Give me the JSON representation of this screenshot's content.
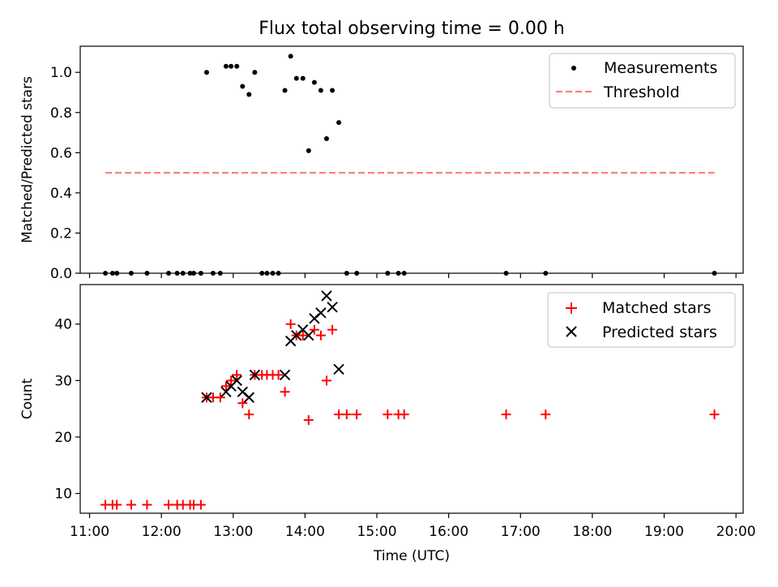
{
  "figure": {
    "title": "Flux total observing time = 0.00 h",
    "xlabel": "Time (UTC)",
    "xticks": [
      "11:00",
      "12:00",
      "13:00",
      "14:00",
      "15:00",
      "16:00",
      "17:00",
      "18:00",
      "19:00",
      "20:00"
    ]
  },
  "chart_data": [
    {
      "type": "scatter",
      "title": "Flux total observing time = 0.00 h",
      "xlabel": "",
      "ylabel": "Matched/Predicted stars",
      "x_unit": "hours UTC",
      "xlim": [
        10.87,
        20.1
      ],
      "ylim": [
        0,
        1.13
      ],
      "yticks": [
        "0.0",
        "0.2",
        "0.4",
        "0.6",
        "0.8",
        "1.0"
      ],
      "ytick_values": [
        0,
        0.2,
        0.4,
        0.6,
        0.8,
        1.0
      ],
      "grid": false,
      "legend": "top-right",
      "series": [
        {
          "name": "Measurements",
          "marker": "dot",
          "color": "#000000",
          "points": [
            [
              11.22,
              0
            ],
            [
              11.32,
              0
            ],
            [
              11.38,
              0
            ],
            [
              11.58,
              0
            ],
            [
              11.8,
              0
            ],
            [
              12.1,
              0
            ],
            [
              12.22,
              0
            ],
            [
              12.3,
              0
            ],
            [
              12.4,
              0
            ],
            [
              12.45,
              0
            ],
            [
              12.55,
              0
            ],
            [
              12.72,
              0
            ],
            [
              12.82,
              0
            ],
            [
              13.4,
              0
            ],
            [
              13.47,
              0
            ],
            [
              13.55,
              0
            ],
            [
              13.63,
              0
            ],
            [
              14.58,
              0
            ],
            [
              14.72,
              0
            ],
            [
              15.15,
              0
            ],
            [
              15.3,
              0
            ],
            [
              15.38,
              0
            ],
            [
              16.8,
              0
            ],
            [
              17.35,
              0
            ],
            [
              19.7,
              0
            ],
            [
              12.63,
              1.0
            ],
            [
              12.9,
              1.03
            ],
            [
              12.97,
              1.03
            ],
            [
              13.05,
              1.03
            ],
            [
              13.13,
              0.93
            ],
            [
              13.22,
              0.89
            ],
            [
              13.3,
              1.0
            ],
            [
              13.72,
              0.91
            ],
            [
              13.8,
              1.08
            ],
            [
              13.88,
              0.97
            ],
            [
              13.97,
              0.97
            ],
            [
              14.05,
              0.61
            ],
            [
              14.13,
              0.95
            ],
            [
              14.22,
              0.91
            ],
            [
              14.3,
              0.67
            ],
            [
              14.38,
              0.91
            ],
            [
              14.47,
              0.75
            ]
          ]
        },
        {
          "name": "Threshold",
          "style": "dashed",
          "color": "#ff7f7f",
          "points": [
            [
              11.22,
              0.5
            ],
            [
              19.7,
              0.5
            ]
          ]
        }
      ]
    },
    {
      "type": "scatter",
      "xlabel": "Time (UTC)",
      "ylabel": "Count",
      "x_unit": "hours UTC",
      "xlim": [
        10.87,
        20.1
      ],
      "ylim": [
        6.5,
        47
      ],
      "yticks": [
        "10",
        "20",
        "30",
        "40"
      ],
      "ytick_values": [
        10,
        20,
        30,
        40
      ],
      "grid": false,
      "legend": "top-right",
      "series": [
        {
          "name": "Matched stars",
          "marker": "plus",
          "color": "#ff0000",
          "points": [
            [
              11.22,
              8
            ],
            [
              11.32,
              8
            ],
            [
              11.38,
              8
            ],
            [
              11.58,
              8
            ],
            [
              11.8,
              8
            ],
            [
              12.1,
              8
            ],
            [
              12.22,
              8
            ],
            [
              12.3,
              8
            ],
            [
              12.4,
              8
            ],
            [
              12.45,
              8
            ],
            [
              12.55,
              8
            ],
            [
              12.63,
              27
            ],
            [
              12.72,
              27
            ],
            [
              12.82,
              27
            ],
            [
              12.9,
              29
            ],
            [
              12.97,
              30
            ],
            [
              13.05,
              31
            ],
            [
              13.13,
              26
            ],
            [
              13.22,
              24
            ],
            [
              13.3,
              31
            ],
            [
              13.4,
              31
            ],
            [
              13.47,
              31
            ],
            [
              13.55,
              31
            ],
            [
              13.63,
              31
            ],
            [
              13.72,
              28
            ],
            [
              13.8,
              40
            ],
            [
              13.88,
              38
            ],
            [
              13.97,
              38
            ],
            [
              14.05,
              23
            ],
            [
              14.13,
              39
            ],
            [
              14.22,
              38
            ],
            [
              14.3,
              30
            ],
            [
              14.38,
              39
            ],
            [
              14.47,
              24
            ],
            [
              14.58,
              24
            ],
            [
              14.72,
              24
            ],
            [
              15.15,
              24
            ],
            [
              15.3,
              24
            ],
            [
              15.38,
              24
            ],
            [
              16.8,
              24
            ],
            [
              17.35,
              24
            ],
            [
              19.7,
              24
            ]
          ]
        },
        {
          "name": "Predicted stars",
          "marker": "x",
          "color": "#000000",
          "points": [
            [
              12.63,
              27
            ],
            [
              12.9,
              28
            ],
            [
              12.97,
              29
            ],
            [
              13.05,
              30
            ],
            [
              13.13,
              28
            ],
            [
              13.22,
              27
            ],
            [
              13.3,
              31
            ],
            [
              13.72,
              31
            ],
            [
              13.8,
              37
            ],
            [
              13.88,
              38
            ],
            [
              13.97,
              39
            ],
            [
              14.05,
              38
            ],
            [
              14.13,
              41
            ],
            [
              14.22,
              42
            ],
            [
              14.3,
              45
            ],
            [
              14.38,
              43
            ],
            [
              14.47,
              32
            ]
          ]
        }
      ]
    }
  ]
}
